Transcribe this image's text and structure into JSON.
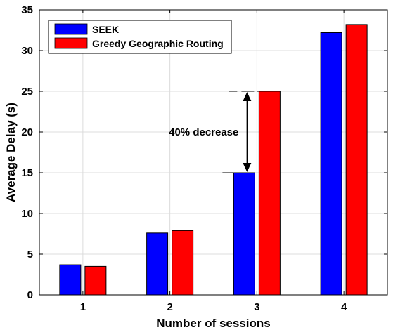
{
  "chart_data": {
    "type": "bar",
    "xlabel": "Number of sessions",
    "ylabel": "Average Delay (s)",
    "categories": [
      "1",
      "2",
      "3",
      "4"
    ],
    "ylim": [
      0,
      35
    ],
    "yticks": [
      "0",
      "5",
      "10",
      "15",
      "20",
      "25",
      "30",
      "35"
    ],
    "grid": true,
    "legend_position": "top-left",
    "series": [
      {
        "name": "SEEK",
        "color": "#0000ff",
        "values": [
          3.7,
          7.6,
          15.0,
          32.2
        ]
      },
      {
        "name": "Greedy Geographic Routing",
        "color": "#ff0000",
        "values": [
          3.5,
          7.9,
          25.0,
          33.2
        ]
      }
    ],
    "annotation": {
      "text": "40% decrease",
      "category": "3",
      "from": 15.0,
      "to": 25.0
    }
  }
}
